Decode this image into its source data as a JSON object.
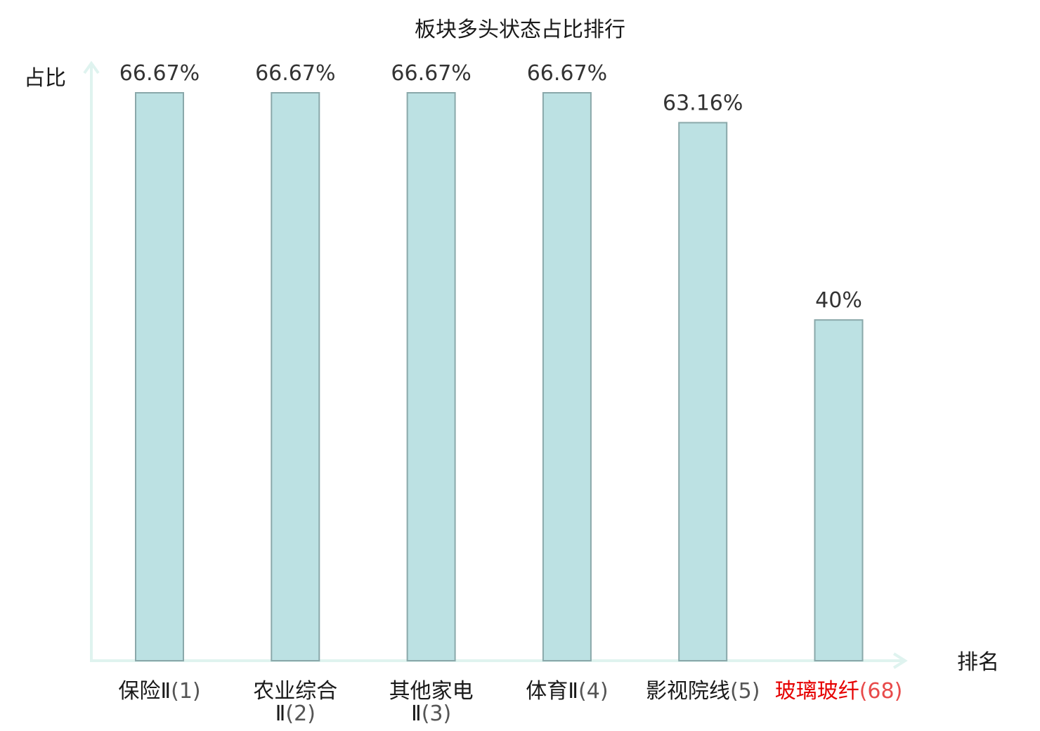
{
  "chart_data": {
    "type": "bar",
    "title": "板块多头状态占比排行",
    "ylabel": "占比",
    "xlabel": "排名",
    "ylim": [
      0,
      70
    ],
    "grid": false,
    "legend": "none",
    "categories": [
      {
        "name_lines": [
          "保险Ⅱ"
        ],
        "rank": "(1)",
        "highlight": false
      },
      {
        "name_lines": [
          "农业综合",
          "Ⅱ"
        ],
        "rank": "(2)",
        "highlight": false
      },
      {
        "name_lines": [
          "其他家电",
          "Ⅱ"
        ],
        "rank": "(3)",
        "highlight": false
      },
      {
        "name_lines": [
          "体育Ⅱ"
        ],
        "rank": "(4)",
        "highlight": false
      },
      {
        "name_lines": [
          "影视院线"
        ],
        "rank": "(5)",
        "highlight": false
      },
      {
        "name_lines": [
          "玻璃玻纤"
        ],
        "rank": "(68)",
        "highlight": true
      }
    ],
    "values": [
      66.67,
      66.67,
      66.67,
      66.67,
      63.16,
      40
    ],
    "value_labels": [
      "66.67%",
      "66.67%",
      "66.67%",
      "66.67%",
      "63.16%",
      "40%"
    ],
    "colors": {
      "bar_fill": "#bce1e3",
      "bar_stroke": "#8aa8aa",
      "axis": "#dff3ef",
      "highlight": "#e60000"
    }
  }
}
